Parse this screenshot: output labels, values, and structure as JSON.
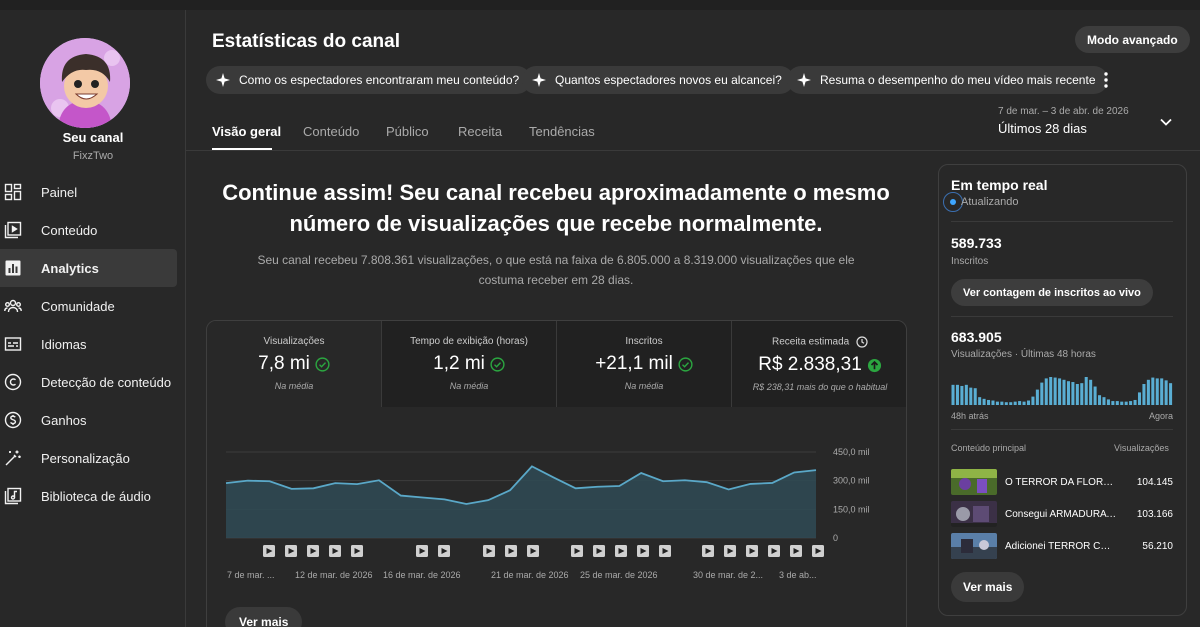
{
  "page": {
    "title": "Estatísticas do canal",
    "advanced_mode": "Modo avançado"
  },
  "channel": {
    "name": "Seu canal",
    "handle": "FixzTwo"
  },
  "sidebar": {
    "items": [
      {
        "label": "Painel",
        "icon": "dashboard-icon"
      },
      {
        "label": "Conteúdo",
        "icon": "content-icon"
      },
      {
        "label": "Analytics",
        "icon": "analytics-icon"
      },
      {
        "label": "Comunidade",
        "icon": "community-icon"
      },
      {
        "label": "Idiomas",
        "icon": "subtitles-icon"
      },
      {
        "label": "Detecção de conteúdo",
        "icon": "copyright-icon"
      },
      {
        "label": "Ganhos",
        "icon": "earn-icon"
      },
      {
        "label": "Personalização",
        "icon": "magic-wand-icon"
      },
      {
        "label": "Biblioteca de áudio",
        "icon": "audio-library-icon"
      }
    ],
    "active_index": 2
  },
  "chips": [
    "Como os espectadores encontraram meu conteúdo?",
    "Quantos espectadores novos eu alcancei?",
    "Resuma o desempenho do meu vídeo mais recente"
  ],
  "tabs": [
    "Visão geral",
    "Conteúdo",
    "Público",
    "Receita",
    "Tendências"
  ],
  "date": {
    "range": "7 de mar. – 3 de abr. de 2026",
    "label": "Últimos 28 dias"
  },
  "headline": "Continue assim! Seu canal recebeu aproximadamente o mesmo número de visualizações que recebe normalmente.",
  "subline": "Seu canal recebeu 7.808.361 visualizações, o que está na faixa de 6.805.000 a 8.319.000 visualizações que ele costuma receber em 28 dias.",
  "metrics": [
    {
      "label": "Visualizações",
      "value": "7,8 mi",
      "note": "Na média"
    },
    {
      "label": "Tempo de exibição (horas)",
      "value": "1,2 mi",
      "note": "Na média"
    },
    {
      "label": "Inscritos",
      "value": "+21,1 mil",
      "note": "Na média"
    },
    {
      "label": "Receita estimada",
      "value": "R$ 2.838,31",
      "note": "R$ 238,31 mais do que o habitual"
    }
  ],
  "chart_data": {
    "type": "area",
    "ylim": [
      0,
      450000
    ],
    "y_ticks": [
      "450,0 mil",
      "300,0 mil",
      "150,0 mil",
      "0"
    ],
    "x_labels": [
      "7 de mar. ...",
      "12 de mar. de 2026",
      "16 de mar. de 2026",
      "21 de mar. de 2026",
      "25 de mar. de 2026",
      "30 de mar. de 2...",
      "3 de ab..."
    ],
    "series": [
      {
        "values": [
          287000,
          300000,
          297000,
          257000,
          260000,
          287000,
          282000,
          302000,
          222000,
          212000,
          202000,
          178000,
          198000,
          250000,
          375000,
          316000,
          260000,
          268000,
          272000,
          340000,
          297000,
          302000,
          292000,
          254000,
          283000,
          288000,
          343000,
          355000
        ]
      }
    ],
    "video_markers": 18,
    "colors": {
      "line": "#5aa8c8",
      "fill": "#2f4a55"
    }
  },
  "ver_mais": "Ver mais",
  "realtime": {
    "title": "Em tempo real",
    "status": "Atualizando",
    "subs_value": "589.733",
    "subs_label": "Inscritos",
    "subs_button": "Ver contagem de inscritos ao vivo",
    "views_value": "683.905",
    "views_label": "Visualizações · Últimas 48 horas",
    "bars": [
      0.72,
      0.72,
      0.68,
      0.72,
      0.62,
      0.6,
      0.28,
      0.22,
      0.18,
      0.16,
      0.12,
      0.12,
      0.1,
      0.1,
      0.12,
      0.14,
      0.12,
      0.16,
      0.3,
      0.55,
      0.8,
      0.95,
      1.0,
      0.98,
      0.95,
      0.9,
      0.85,
      0.82,
      0.75,
      0.78,
      1.0,
      0.9,
      0.66,
      0.35,
      0.28,
      0.2,
      0.14,
      0.14,
      0.12,
      0.12,
      0.14,
      0.18,
      0.45,
      0.75,
      0.9,
      0.98,
      0.95,
      0.95,
      0.88,
      0.78
    ],
    "axis_left": "48h atrás",
    "axis_right": "Agora",
    "table_header_left": "Conteúdo principal",
    "table_header_right": "Visualizações",
    "rows": [
      {
        "title": "O TERROR DA FLORESTA",
        "value": "104.145"
      },
      {
        "title": "Consegui ARMADURA DE",
        "value": "103.166"
      },
      {
        "title": "Adicionei TERROR COLOSSAL",
        "value": "56.210"
      }
    ],
    "ver_mais": "Ver mais"
  }
}
